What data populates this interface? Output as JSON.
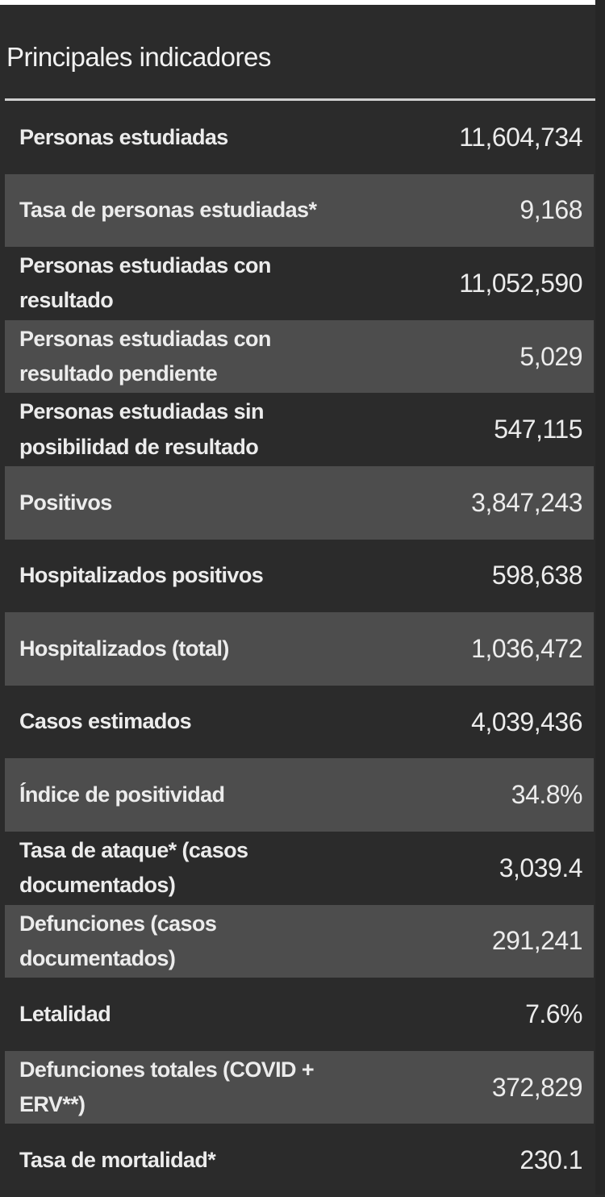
{
  "panel": {
    "title": "Principales indicadores"
  },
  "rows": [
    {
      "label": "Personas estudiadas",
      "value": "11,604,734",
      "shade": "dark"
    },
    {
      "label": "Tasa de personas estudiadas*",
      "value": "9,168",
      "shade": "light"
    },
    {
      "label": "Personas estudiadas con resultado",
      "value": "11,052,590",
      "shade": "dark"
    },
    {
      "label": "Personas estudiadas con resultado pendiente",
      "value": "5,029",
      "shade": "light"
    },
    {
      "label": "Personas estudiadas sin posibilidad de resultado",
      "value": "547,115",
      "shade": "dark"
    },
    {
      "label": "Positivos",
      "value": "3,847,243",
      "shade": "light"
    },
    {
      "label": "Hospitalizados positivos",
      "value": "598,638",
      "shade": "dark"
    },
    {
      "label": "Hospitalizados (total)",
      "value": "1,036,472",
      "shade": "light"
    },
    {
      "label": "Casos estimados",
      "value": "4,039,436",
      "shade": "dark"
    },
    {
      "label": "Índice de positividad",
      "value": "34.8%",
      "shade": "light"
    },
    {
      "label": "Tasa de ataque* (casos documentados)",
      "value": "3,039.4",
      "shade": "dark"
    },
    {
      "label": "Defunciones (casos documentados)",
      "value": "291,241",
      "shade": "light"
    },
    {
      "label": "Letalidad",
      "value": "7.6%",
      "shade": "dark"
    },
    {
      "label": "Defunciones totales (COVID + ERV**)",
      "value": "372,829",
      "shade": "light"
    },
    {
      "label": "Tasa de mortalidad*",
      "value": "230.1",
      "shade": "dark"
    }
  ],
  "colors": {
    "background": "#2b2b2b",
    "row_light": "#4d4d4d",
    "text": "#ececec",
    "rule": "#cfcfcf"
  }
}
